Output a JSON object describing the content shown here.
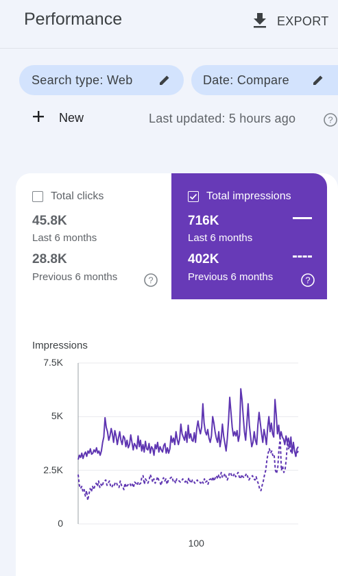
{
  "header": {
    "title": "Performance",
    "export_label": "EXPORT"
  },
  "filters": {
    "search_type_label": "Search type: Web",
    "date_label": "Date: Compare"
  },
  "actions": {
    "new_label": "New",
    "last_updated": "Last updated: 5 hours ago"
  },
  "metrics": {
    "clicks": {
      "title": "Total clicks",
      "checked": false,
      "value_current": "45.8K",
      "label_current": "Last 6 months",
      "value_previous": "28.8K",
      "label_previous": "Previous 6 months"
    },
    "impressions": {
      "title": "Total impressions",
      "checked": true,
      "value_current": "716K",
      "label_current": "Last 6 months",
      "value_previous": "402K",
      "label_previous": "Previous 6 months"
    }
  },
  "colors": {
    "accent": "#673ab7",
    "chip": "#d3e3fd",
    "background": "#f1f4fb"
  },
  "chart_data": {
    "type": "line",
    "ylabel": "Impressions",
    "ylim": [
      0,
      7500
    ],
    "y_ticks": [
      "0",
      "2.5K",
      "5K",
      "7.5K"
    ],
    "y_tick_values": [
      0,
      2500,
      5000,
      7500
    ],
    "x_ticks": [
      "100"
    ],
    "x_tick_values": [
      100
    ],
    "xlim": [
      1,
      183
    ],
    "grid": true,
    "series": [
      {
        "style": "solid",
        "color": "#5e35b1",
        "values": [
          3000,
          3200,
          3100,
          3300,
          3050,
          3250,
          3350,
          3150,
          3400,
          3300,
          3500,
          3250,
          3300,
          3450,
          3350,
          3550,
          3300,
          3400,
          3200,
          3400,
          3800,
          4050,
          4950,
          4500,
          4300,
          3900,
          4100,
          4450,
          4200,
          3800,
          4350,
          4100,
          3700,
          4000,
          4300,
          3900,
          3700,
          4100,
          4000,
          3600,
          3900,
          3550,
          3700,
          4150,
          3800,
          3450,
          3750,
          3650,
          3500,
          4100,
          3600,
          3900,
          3400,
          3700,
          3350,
          3850,
          3500,
          3450,
          3750,
          3300,
          3600,
          3500,
          3200,
          3700,
          3500,
          3800,
          3350,
          3600,
          3450,
          3350,
          3650,
          3750,
          3300,
          3550,
          3300,
          3500,
          4100,
          3800,
          4000,
          3700,
          4300,
          3950,
          3700,
          3950,
          4650,
          4200,
          4050,
          3900,
          4300,
          3800,
          4600,
          4000,
          4200,
          3900,
          3850,
          4250,
          3800,
          4450,
          4800,
          4450,
          4200,
          4500,
          5600,
          4700,
          4300,
          4150,
          4400,
          4000,
          3800,
          4100,
          5000,
          4700,
          4300,
          4000,
          3800,
          4300,
          3600,
          3950,
          4650,
          4100,
          3750,
          3400,
          4000,
          4850,
          5900,
          5200,
          4500,
          4100,
          4300,
          4100,
          4350,
          3850,
          4150,
          6300,
          5800,
          5000,
          4300,
          3900,
          4700,
          5600,
          4600,
          4100,
          3600,
          3800,
          4300,
          3900,
          3700,
          4600,
          5200,
          4700,
          4200,
          3800,
          4400,
          4100,
          3700,
          4500,
          5000,
          4300,
          4700,
          4200,
          4050,
          5800,
          5100,
          4200,
          4600,
          4000,
          4300,
          4050,
          3950,
          3700,
          4100,
          3800,
          4000,
          3600,
          4050,
          3300,
          3800,
          3400,
          3150,
          3500,
          3600
        ]
      },
      {
        "style": "dashed",
        "color": "#5e35b1",
        "values": [
          2300,
          1800,
          1650,
          1750,
          1500,
          1600,
          1300,
          1550,
          1100,
          1400,
          1650,
          1500,
          1750,
          1600,
          1800,
          1900,
          1750,
          2000,
          1700,
          1850,
          1750,
          1950,
          2000,
          2050,
          1800,
          1900,
          2000,
          1750,
          1700,
          1850,
          1800,
          1950,
          1900,
          1750,
          1700,
          2000,
          1800,
          1750,
          1600,
          1900,
          1700,
          1800,
          1850,
          1900,
          1750,
          1850,
          1700,
          1950,
          1900,
          1800,
          1950,
          1850,
          1900,
          2200,
          2250,
          1850,
          2100,
          2000,
          1900,
          2050,
          2300,
          2150,
          1950,
          2100,
          1900,
          2000,
          2200,
          2050,
          1950,
          1800,
          2050,
          2150,
          2000,
          2100,
          1850,
          2050,
          2100,
          2150,
          2200,
          2000,
          2050,
          1900,
          2100,
          2050,
          2000,
          1950,
          2000,
          2100,
          2000,
          1950,
          2050,
          1900,
          2150,
          2000,
          1900,
          2050,
          2000,
          1900,
          1950,
          2050,
          1950,
          1950,
          1900,
          2000,
          1900,
          2100,
          1950,
          2000,
          1850,
          2050,
          2100,
          2000,
          2200,
          2000,
          2150,
          2250,
          2100,
          2300,
          2150,
          2400,
          2150,
          2200,
          2350,
          2200,
          2050,
          2200,
          2400,
          2350,
          2200,
          2250,
          2350,
          2200,
          2300,
          2400,
          2200,
          2100,
          2300,
          2200,
          2150,
          2250,
          2350,
          2200,
          2050,
          2150,
          2200,
          2250,
          2100,
          2050,
          2200,
          2000,
          1850,
          1600,
          1550,
          1800,
          2000,
          2300,
          2500,
          3000,
          3300,
          3500,
          3300,
          3400,
          3150,
          3200,
          2500,
          2350,
          2650,
          3500,
          4000,
          2500,
          2700,
          2400,
          2500,
          3000,
          3800,
          3500,
          3700,
          3300,
          3400,
          3600,
          3400,
          3150,
          3300,
          3400
        ]
      }
    ]
  }
}
